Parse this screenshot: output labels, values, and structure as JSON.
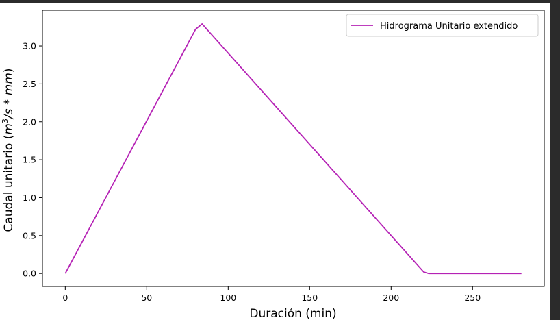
{
  "chart_data": {
    "type": "line",
    "xlabel": "Duración (min)",
    "ylabel": {
      "prefix": "Caudal unitario (",
      "m": "m",
      "sup": "3",
      "rest": "/s * mm",
      "suffix": ")"
    },
    "xlim": [
      -14,
      294
    ],
    "ylim": [
      -0.17,
      3.47
    ],
    "xticks": [
      0,
      50,
      100,
      150,
      200,
      250
    ],
    "xtick_labels": [
      "0",
      "50",
      "100",
      "150",
      "200",
      "250"
    ],
    "yticks": [
      0.0,
      0.5,
      1.0,
      1.5,
      2.0,
      2.5,
      3.0
    ],
    "ytick_labels": [
      "0.0",
      "0.5",
      "1.0",
      "1.5",
      "2.0",
      "2.5",
      "3.0"
    ],
    "grid": false,
    "legend_position": "top-right",
    "series": [
      {
        "name": "Hidrograma Unitario extendido",
        "color": "#b522b5",
        "x": [
          0,
          80,
          84,
          220,
          223,
          280
        ],
        "y": [
          0.0,
          3.22,
          3.29,
          0.02,
          0.0,
          0.0
        ]
      }
    ]
  }
}
